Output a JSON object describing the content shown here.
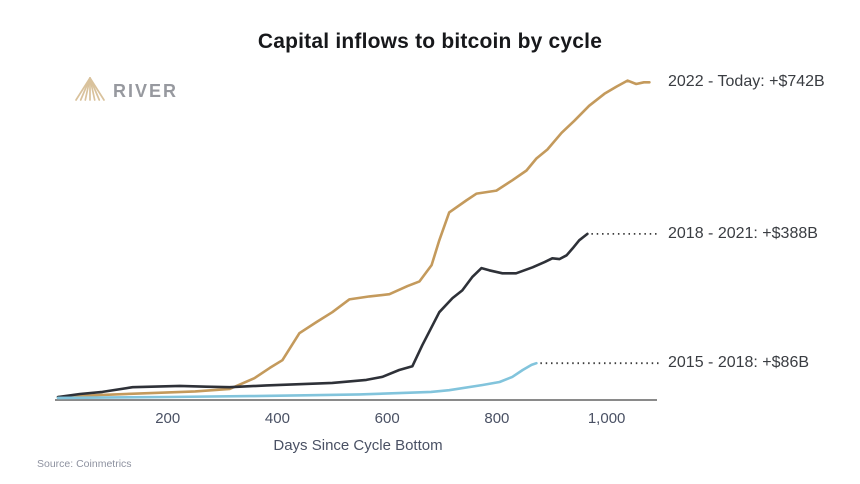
{
  "page": {
    "title": "Capital inflows to bitcoin by cycle"
  },
  "logo": {
    "brand": "RIVER",
    "icon": "mountain-fan-icon",
    "icon_color": "#d9c29c",
    "text_color": "#97999f"
  },
  "source_note": "Source: Coinmetrics",
  "chart_data": {
    "type": "line",
    "title": "Capital inflows to bitcoin by cycle",
    "xlabel": "Days Since Cycle Bottom",
    "ylabel": "",
    "xlim": [
      0,
      1090
    ],
    "ylim": [
      0,
      780
    ],
    "grid": false,
    "y_axis_shown": false,
    "legend_position": "right-annotations",
    "axis_color": "#8a8a8a",
    "leader_line_color": "#3b3b3b",
    "tick_label_color": "#4a5164",
    "annotation_color": "#3a3d42",
    "x_ticks": [
      "200",
      "400",
      "600",
      "800",
      "1,000"
    ],
    "x_tick_values": [
      200,
      400,
      600,
      800,
      1000
    ],
    "units": "USD billions of capital inflow",
    "series": [
      {
        "name": "2022 - Today",
        "annotation": "2022 - Today: +$742B",
        "final_inflow_billion_usd": 742,
        "color": "#c49a5c",
        "leader_dotted": false,
        "points": [
          [
            0,
            7
          ],
          [
            80,
            12
          ],
          [
            170,
            16
          ],
          [
            250,
            20
          ],
          [
            313,
            26
          ],
          [
            358,
            51
          ],
          [
            386,
            75
          ],
          [
            409,
            93
          ],
          [
            440,
            156
          ],
          [
            471,
            182
          ],
          [
            500,
            205
          ],
          [
            531,
            235
          ],
          [
            568,
            242
          ],
          [
            604,
            247
          ],
          [
            637,
            266
          ],
          [
            659,
            277
          ],
          [
            681,
            315
          ],
          [
            695,
            373
          ],
          [
            713,
            438
          ],
          [
            744,
            466
          ],
          [
            763,
            482
          ],
          [
            799,
            489
          ],
          [
            828,
            513
          ],
          [
            854,
            536
          ],
          [
            872,
            564
          ],
          [
            892,
            585
          ],
          [
            918,
            624
          ],
          [
            941,
            652
          ],
          [
            968,
            687
          ],
          [
            996,
            715
          ],
          [
            1018,
            732
          ],
          [
            1038,
            746
          ],
          [
            1054,
            738
          ],
          [
            1068,
            742
          ],
          [
            1078,
            742
          ]
        ]
      },
      {
        "name": "2018 - 2021",
        "annotation": "2018 - 2021: +$388B",
        "final_inflow_billion_usd": 388,
        "color": "#2e3138",
        "leader_dotted": true,
        "points": [
          [
            0,
            7
          ],
          [
            40,
            14
          ],
          [
            81,
            19
          ],
          [
            136,
            30
          ],
          [
            222,
            33
          ],
          [
            270,
            31
          ],
          [
            313,
            30
          ],
          [
            380,
            34
          ],
          [
            440,
            37
          ],
          [
            500,
            40
          ],
          [
            562,
            47
          ],
          [
            591,
            54
          ],
          [
            622,
            70
          ],
          [
            646,
            79
          ],
          [
            664,
            128
          ],
          [
            695,
            205
          ],
          [
            719,
            238
          ],
          [
            737,
            256
          ],
          [
            755,
            287
          ],
          [
            772,
            308
          ],
          [
            786,
            303
          ],
          [
            810,
            296
          ],
          [
            835,
            296
          ],
          [
            865,
            310
          ],
          [
            887,
            322
          ],
          [
            901,
            331
          ],
          [
            914,
            329
          ],
          [
            927,
            338
          ],
          [
            938,
            354
          ],
          [
            950,
            373
          ],
          [
            965,
            388
          ]
        ]
      },
      {
        "name": "2015 - 2018",
        "annotation": "2015 - 2018: +$86B",
        "final_inflow_billion_usd": 86,
        "color": "#82c4dc",
        "leader_dotted": true,
        "points": [
          [
            0,
            5
          ],
          [
            100,
            6
          ],
          [
            200,
            7
          ],
          [
            349,
            9
          ],
          [
            450,
            11
          ],
          [
            550,
            13
          ],
          [
            622,
            16
          ],
          [
            680,
            19
          ],
          [
            713,
            23
          ],
          [
            774,
            35
          ],
          [
            805,
            42
          ],
          [
            828,
            54
          ],
          [
            847,
            70
          ],
          [
            863,
            82
          ],
          [
            872,
            86
          ]
        ]
      }
    ]
  }
}
